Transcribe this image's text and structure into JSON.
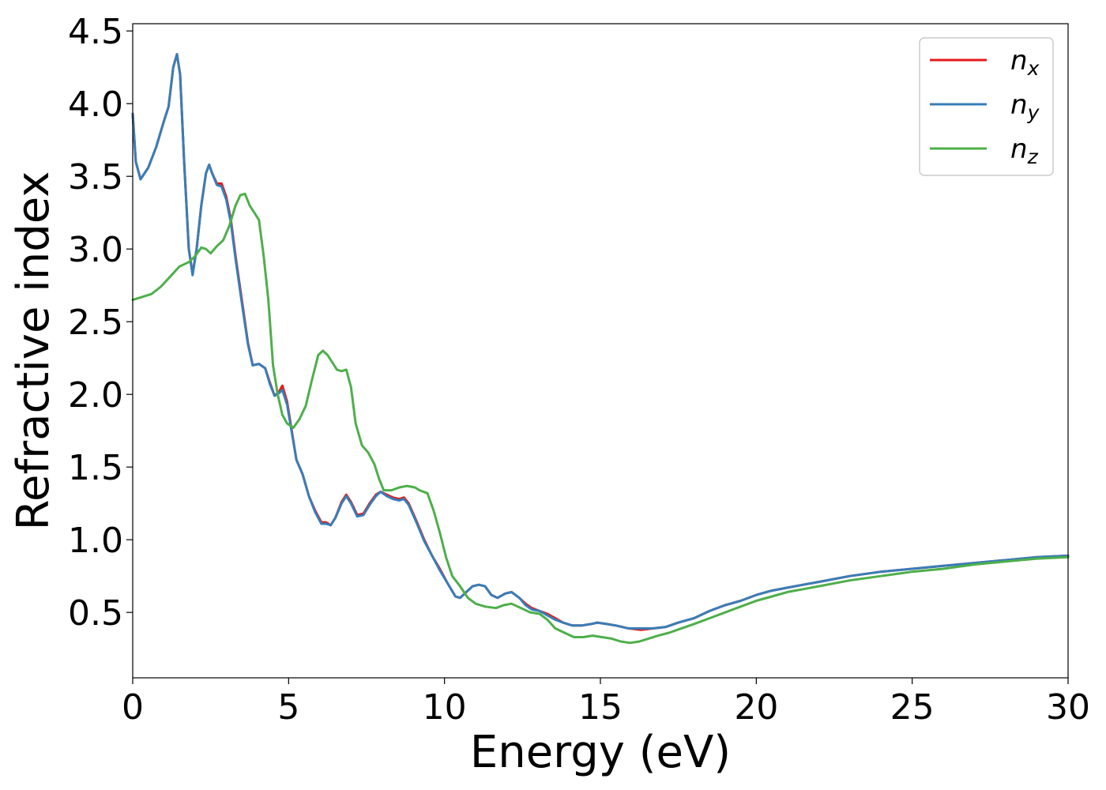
{
  "chart_data": {
    "type": "line",
    "xlabel": "Energy (eV)",
    "ylabel": "Refractive index",
    "xlim": [
      0,
      30
    ],
    "ylim": [
      0.05,
      4.55
    ],
    "xticks": [
      0,
      5,
      10,
      15,
      20,
      25,
      30
    ],
    "yticks": [
      0.5,
      1.0,
      1.5,
      2.0,
      2.5,
      3.0,
      3.5,
      4.0,
      4.5
    ],
    "ytick_labels": [
      "0.5",
      "1.0",
      "1.5",
      "2.0",
      "2.5",
      "3.0",
      "3.5",
      "4.0",
      "4.5"
    ],
    "grid": false,
    "legend_position": "top-right",
    "series": [
      {
        "name": "n",
        "subscript": "x",
        "color": "#e41a1c",
        "points": [
          [
            0,
            3.93
          ],
          [
            0.1,
            3.6
          ],
          [
            0.25,
            3.48
          ],
          [
            0.5,
            3.56
          ],
          [
            0.75,
            3.7
          ],
          [
            1.0,
            3.88
          ],
          [
            1.15,
            3.98
          ],
          [
            1.3,
            4.25
          ],
          [
            1.42,
            4.34
          ],
          [
            1.52,
            4.2
          ],
          [
            1.65,
            3.6
          ],
          [
            1.8,
            3.0
          ],
          [
            1.92,
            2.83
          ],
          [
            2.05,
            3.0
          ],
          [
            2.2,
            3.3
          ],
          [
            2.35,
            3.52
          ],
          [
            2.45,
            3.58
          ],
          [
            2.55,
            3.52
          ],
          [
            2.7,
            3.45
          ],
          [
            2.85,
            3.45
          ],
          [
            3.0,
            3.36
          ],
          [
            3.15,
            3.2
          ],
          [
            3.3,
            2.95
          ],
          [
            3.5,
            2.65
          ],
          [
            3.7,
            2.35
          ],
          [
            3.85,
            2.2
          ],
          [
            4.05,
            2.21
          ],
          [
            4.25,
            2.18
          ],
          [
            4.4,
            2.08
          ],
          [
            4.55,
            1.99
          ],
          [
            4.7,
            2.02
          ],
          [
            4.8,
            2.06
          ],
          [
            4.95,
            1.95
          ],
          [
            5.1,
            1.75
          ],
          [
            5.25,
            1.55
          ],
          [
            5.45,
            1.45
          ],
          [
            5.65,
            1.3
          ],
          [
            5.85,
            1.2
          ],
          [
            6.05,
            1.12
          ],
          [
            6.2,
            1.12
          ],
          [
            6.35,
            1.1
          ],
          [
            6.5,
            1.15
          ],
          [
            6.7,
            1.26
          ],
          [
            6.85,
            1.31
          ],
          [
            7.0,
            1.26
          ],
          [
            7.2,
            1.17
          ],
          [
            7.4,
            1.18
          ],
          [
            7.6,
            1.25
          ],
          [
            7.8,
            1.31
          ],
          [
            7.95,
            1.33
          ],
          [
            8.15,
            1.31
          ],
          [
            8.35,
            1.29
          ],
          [
            8.55,
            1.28
          ],
          [
            8.7,
            1.29
          ],
          [
            8.85,
            1.25
          ],
          [
            9.1,
            1.13
          ],
          [
            9.35,
            1.0
          ],
          [
            9.6,
            0.89
          ],
          [
            9.85,
            0.8
          ],
          [
            10.1,
            0.7
          ],
          [
            10.35,
            0.61
          ],
          [
            10.5,
            0.6
          ],
          [
            10.7,
            0.64
          ],
          [
            10.9,
            0.68
          ],
          [
            11.1,
            0.69
          ],
          [
            11.3,
            0.68
          ],
          [
            11.5,
            0.62
          ],
          [
            11.7,
            0.6
          ],
          [
            11.95,
            0.63
          ],
          [
            12.15,
            0.64
          ],
          [
            12.4,
            0.6
          ],
          [
            12.6,
            0.56
          ],
          [
            12.8,
            0.53
          ],
          [
            13.05,
            0.51
          ],
          [
            13.3,
            0.49
          ],
          [
            13.55,
            0.46
          ],
          [
            13.8,
            0.43
          ],
          [
            14.1,
            0.41
          ],
          [
            14.4,
            0.41
          ],
          [
            14.7,
            0.42
          ],
          [
            14.9,
            0.43
          ],
          [
            15.2,
            0.42
          ],
          [
            15.5,
            0.41
          ],
          [
            15.9,
            0.39
          ],
          [
            16.3,
            0.38
          ],
          [
            16.7,
            0.39
          ],
          [
            17.1,
            0.4
          ],
          [
            17.5,
            0.43
          ],
          [
            18.0,
            0.46
          ],
          [
            18.5,
            0.51
          ],
          [
            19.0,
            0.55
          ],
          [
            19.5,
            0.58
          ],
          [
            20.0,
            0.62
          ],
          [
            20.5,
            0.65
          ],
          [
            21.0,
            0.67
          ],
          [
            21.5,
            0.69
          ],
          [
            22.0,
            0.71
          ],
          [
            23.0,
            0.75
          ],
          [
            24.0,
            0.78
          ],
          [
            25.0,
            0.8
          ],
          [
            26.0,
            0.82
          ],
          [
            27.0,
            0.84
          ],
          [
            28.0,
            0.86
          ],
          [
            29.0,
            0.88
          ],
          [
            30.0,
            0.89
          ]
        ]
      },
      {
        "name": "n",
        "subscript": "y",
        "color": "#377eb8",
        "points": [
          [
            0,
            3.93
          ],
          [
            0.1,
            3.6
          ],
          [
            0.25,
            3.48
          ],
          [
            0.5,
            3.56
          ],
          [
            0.75,
            3.7
          ],
          [
            1.0,
            3.88
          ],
          [
            1.15,
            3.98
          ],
          [
            1.3,
            4.25
          ],
          [
            1.42,
            4.34
          ],
          [
            1.52,
            4.2
          ],
          [
            1.65,
            3.6
          ],
          [
            1.8,
            3.0
          ],
          [
            1.92,
            2.82
          ],
          [
            2.05,
            3.0
          ],
          [
            2.2,
            3.3
          ],
          [
            2.35,
            3.52
          ],
          [
            2.45,
            3.58
          ],
          [
            2.55,
            3.52
          ],
          [
            2.7,
            3.44
          ],
          [
            2.85,
            3.43
          ],
          [
            3.0,
            3.34
          ],
          [
            3.15,
            3.18
          ],
          [
            3.3,
            2.93
          ],
          [
            3.5,
            2.63
          ],
          [
            3.7,
            2.34
          ],
          [
            3.85,
            2.2
          ],
          [
            4.05,
            2.21
          ],
          [
            4.25,
            2.18
          ],
          [
            4.4,
            2.07
          ],
          [
            4.55,
            1.99
          ],
          [
            4.7,
            2.01
          ],
          [
            4.8,
            2.03
          ],
          [
            4.95,
            1.93
          ],
          [
            5.1,
            1.74
          ],
          [
            5.25,
            1.55
          ],
          [
            5.45,
            1.45
          ],
          [
            5.65,
            1.3
          ],
          [
            5.85,
            1.19
          ],
          [
            6.05,
            1.11
          ],
          [
            6.2,
            1.11
          ],
          [
            6.35,
            1.1
          ],
          [
            6.5,
            1.15
          ],
          [
            6.7,
            1.25
          ],
          [
            6.85,
            1.3
          ],
          [
            7.0,
            1.25
          ],
          [
            7.2,
            1.16
          ],
          [
            7.4,
            1.17
          ],
          [
            7.6,
            1.24
          ],
          [
            7.8,
            1.3
          ],
          [
            7.95,
            1.33
          ],
          [
            8.15,
            1.3
          ],
          [
            8.35,
            1.28
          ],
          [
            8.55,
            1.27
          ],
          [
            8.7,
            1.28
          ],
          [
            8.85,
            1.24
          ],
          [
            9.1,
            1.12
          ],
          [
            9.35,
            0.99
          ],
          [
            9.6,
            0.89
          ],
          [
            9.85,
            0.79
          ],
          [
            10.1,
            0.7
          ],
          [
            10.35,
            0.61
          ],
          [
            10.5,
            0.6
          ],
          [
            10.7,
            0.64
          ],
          [
            10.9,
            0.68
          ],
          [
            11.1,
            0.69
          ],
          [
            11.3,
            0.68
          ],
          [
            11.5,
            0.62
          ],
          [
            11.7,
            0.6
          ],
          [
            11.95,
            0.63
          ],
          [
            12.15,
            0.64
          ],
          [
            12.4,
            0.6
          ],
          [
            12.6,
            0.55
          ],
          [
            12.8,
            0.52
          ],
          [
            13.05,
            0.51
          ],
          [
            13.3,
            0.48
          ],
          [
            13.55,
            0.45
          ],
          [
            13.8,
            0.43
          ],
          [
            14.1,
            0.41
          ],
          [
            14.4,
            0.41
          ],
          [
            14.7,
            0.42
          ],
          [
            14.9,
            0.43
          ],
          [
            15.2,
            0.42
          ],
          [
            15.5,
            0.41
          ],
          [
            15.9,
            0.39
          ],
          [
            16.3,
            0.39
          ],
          [
            16.7,
            0.39
          ],
          [
            17.1,
            0.4
          ],
          [
            17.5,
            0.43
          ],
          [
            18.0,
            0.46
          ],
          [
            18.5,
            0.51
          ],
          [
            19.0,
            0.55
          ],
          [
            19.5,
            0.58
          ],
          [
            20.0,
            0.62
          ],
          [
            20.5,
            0.65
          ],
          [
            21.0,
            0.67
          ],
          [
            21.5,
            0.69
          ],
          [
            22.0,
            0.71
          ],
          [
            23.0,
            0.75
          ],
          [
            24.0,
            0.78
          ],
          [
            25.0,
            0.8
          ],
          [
            26.0,
            0.82
          ],
          [
            27.0,
            0.84
          ],
          [
            28.0,
            0.86
          ],
          [
            29.0,
            0.88
          ],
          [
            30.0,
            0.89
          ]
        ]
      },
      {
        "name": "n",
        "subscript": "z",
        "color": "#4daf4a",
        "points": [
          [
            0,
            2.65
          ],
          [
            0.3,
            2.67
          ],
          [
            0.6,
            2.69
          ],
          [
            0.9,
            2.74
          ],
          [
            1.2,
            2.81
          ],
          [
            1.5,
            2.88
          ],
          [
            1.8,
            2.91
          ],
          [
            2.0,
            2.95
          ],
          [
            2.2,
            3.01
          ],
          [
            2.35,
            3.0
          ],
          [
            2.5,
            2.97
          ],
          [
            2.7,
            3.02
          ],
          [
            2.9,
            3.06
          ],
          [
            3.1,
            3.16
          ],
          [
            3.3,
            3.3
          ],
          [
            3.45,
            3.37
          ],
          [
            3.6,
            3.38
          ],
          [
            3.75,
            3.3
          ],
          [
            3.9,
            3.25
          ],
          [
            4.05,
            3.2
          ],
          [
            4.2,
            2.95
          ],
          [
            4.35,
            2.65
          ],
          [
            4.5,
            2.2
          ],
          [
            4.65,
            2.0
          ],
          [
            4.8,
            1.86
          ],
          [
            4.95,
            1.8
          ],
          [
            5.15,
            1.77
          ],
          [
            5.35,
            1.83
          ],
          [
            5.55,
            1.92
          ],
          [
            5.75,
            2.1
          ],
          [
            5.95,
            2.27
          ],
          [
            6.1,
            2.3
          ],
          [
            6.25,
            2.27
          ],
          [
            6.4,
            2.22
          ],
          [
            6.55,
            2.17
          ],
          [
            6.7,
            2.16
          ],
          [
            6.85,
            2.17
          ],
          [
            7.0,
            2.05
          ],
          [
            7.15,
            1.8
          ],
          [
            7.35,
            1.65
          ],
          [
            7.55,
            1.6
          ],
          [
            7.75,
            1.52
          ],
          [
            7.9,
            1.42
          ],
          [
            8.05,
            1.34
          ],
          [
            8.3,
            1.34
          ],
          [
            8.55,
            1.36
          ],
          [
            8.8,
            1.37
          ],
          [
            9.05,
            1.36
          ],
          [
            9.2,
            1.34
          ],
          [
            9.45,
            1.32
          ],
          [
            9.65,
            1.2
          ],
          [
            9.85,
            1.05
          ],
          [
            10.05,
            0.88
          ],
          [
            10.25,
            0.75
          ],
          [
            10.5,
            0.68
          ],
          [
            10.75,
            0.6
          ],
          [
            11.0,
            0.56
          ],
          [
            11.3,
            0.54
          ],
          [
            11.65,
            0.53
          ],
          [
            11.9,
            0.55
          ],
          [
            12.15,
            0.56
          ],
          [
            12.45,
            0.53
          ],
          [
            12.75,
            0.5
          ],
          [
            13.05,
            0.49
          ],
          [
            13.3,
            0.45
          ],
          [
            13.55,
            0.39
          ],
          [
            13.85,
            0.36
          ],
          [
            14.15,
            0.33
          ],
          [
            14.45,
            0.33
          ],
          [
            14.75,
            0.34
          ],
          [
            15.05,
            0.33
          ],
          [
            15.35,
            0.32
          ],
          [
            15.65,
            0.3
          ],
          [
            15.95,
            0.29
          ],
          [
            16.25,
            0.3
          ],
          [
            16.55,
            0.32
          ],
          [
            16.85,
            0.34
          ],
          [
            17.2,
            0.36
          ],
          [
            17.6,
            0.39
          ],
          [
            18.0,
            0.42
          ],
          [
            18.5,
            0.46
          ],
          [
            19.0,
            0.5
          ],
          [
            19.5,
            0.54
          ],
          [
            20.0,
            0.58
          ],
          [
            20.5,
            0.61
          ],
          [
            21.0,
            0.64
          ],
          [
            21.5,
            0.66
          ],
          [
            22.0,
            0.68
          ],
          [
            23.0,
            0.72
          ],
          [
            24.0,
            0.75
          ],
          [
            25.0,
            0.78
          ],
          [
            26.0,
            0.8
          ],
          [
            27.0,
            0.83
          ],
          [
            28.0,
            0.85
          ],
          [
            29.0,
            0.87
          ],
          [
            30.0,
            0.88
          ]
        ]
      }
    ]
  }
}
